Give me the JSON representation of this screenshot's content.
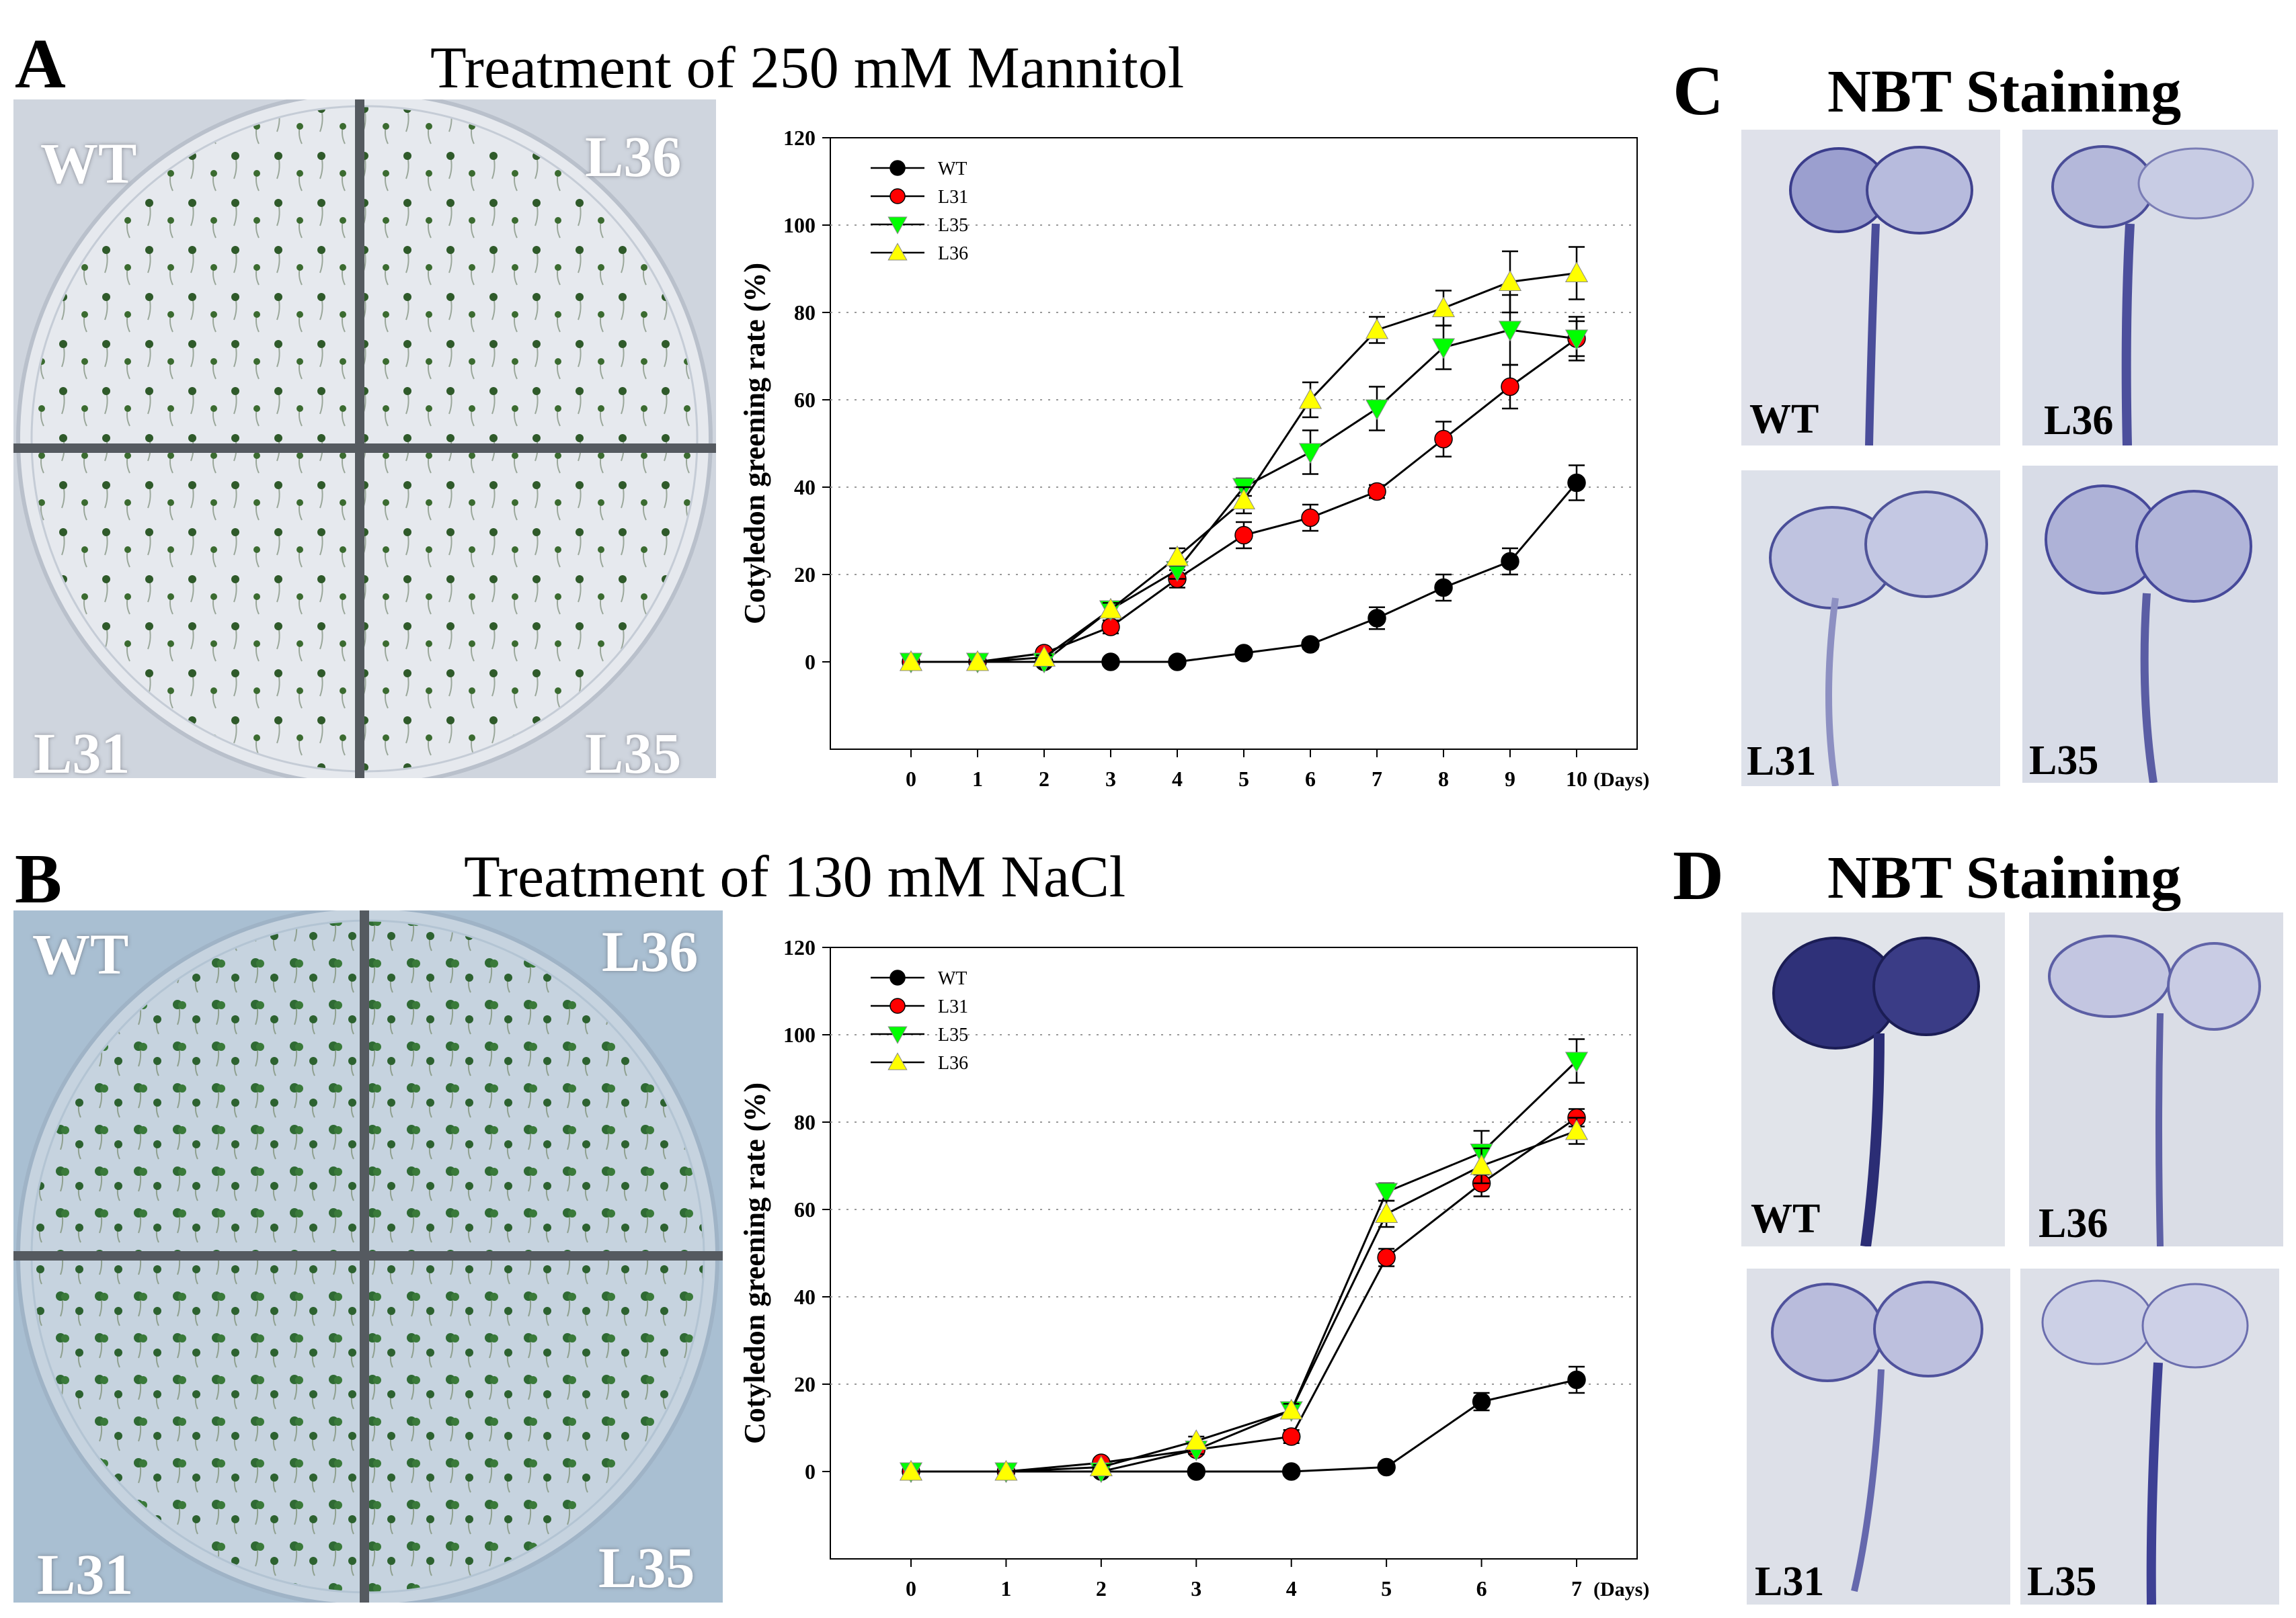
{
  "figure": {
    "panel_letters": {
      "a": "A",
      "b": "B",
      "c": "C",
      "d": "D"
    },
    "titles": {
      "a": "Treatment of 250 mM Mannitol",
      "b": "Treatment of 130 mM NaCl",
      "c": "NBT Staining",
      "d": "NBT Staining"
    },
    "plate_labels": {
      "a": {
        "tl": "WT",
        "tr": "L36",
        "bl": "L31",
        "br": "L35"
      },
      "b": {
        "tl": "WT",
        "tr": "L36",
        "bl": "L31",
        "br": "L35"
      }
    },
    "stain_labels": {
      "c": {
        "tl": "WT",
        "tr": "L36",
        "bl": "L31",
        "br": "L35"
      },
      "d": {
        "tl": "WT",
        "tr": "L36",
        "bl": "L31",
        "br": "L35"
      }
    },
    "colors": {
      "wt": "#000000",
      "l31": "#ff0000",
      "l35": "#00ff00",
      "l36": "#ffff00"
    }
  },
  "chart_data": [
    {
      "type": "line",
      "title": "",
      "xlabel": "",
      "ylabel": "Cotyledon greening rate (%)",
      "x_unit": "(Days)",
      "x": [
        0,
        1,
        2,
        3,
        4,
        5,
        6,
        7,
        8,
        9,
        10
      ],
      "ylim": [
        -20,
        120
      ],
      "yticks": [
        0,
        20,
        40,
        60,
        80,
        100,
        120
      ],
      "grid": "horizontal dotted",
      "legend": "top-left",
      "series": [
        {
          "name": "WT",
          "marker": "circle",
          "color": "#000000",
          "values": [
            0,
            0,
            0,
            0,
            0,
            2,
            4,
            10,
            17,
            23,
            41
          ],
          "errors": [
            0,
            0,
            0,
            0,
            0,
            0.5,
            1,
            2.5,
            3,
            3,
            4
          ]
        },
        {
          "name": "L31",
          "marker": "circle",
          "color": "#ff0000",
          "values": [
            0,
            0,
            2,
            8,
            19,
            29,
            33,
            39,
            51,
            63,
            74
          ],
          "errors": [
            0,
            0,
            0.5,
            1.5,
            2,
            3,
            3,
            1.5,
            4,
            5,
            4
          ]
        },
        {
          "name": "L35",
          "marker": "triangle-down",
          "color": "#00ff00",
          "values": [
            0,
            0,
            0,
            12,
            21,
            40,
            48,
            58,
            72,
            76,
            74
          ],
          "errors": [
            0,
            0,
            0,
            1.5,
            2,
            2,
            5,
            5,
            5,
            8,
            5
          ]
        },
        {
          "name": "L36",
          "marker": "triangle-up",
          "color": "#ffff00",
          "values": [
            0,
            0,
            1,
            12,
            24,
            37,
            60,
            76,
            81,
            87,
            89
          ],
          "errors": [
            0,
            0,
            0.5,
            1.5,
            2,
            3,
            4,
            3,
            4,
            7,
            6
          ]
        }
      ]
    },
    {
      "type": "line",
      "title": "",
      "xlabel": "",
      "ylabel": "Cotyledon greening rate (%)",
      "x_unit": "(Days)",
      "x": [
        0,
        1,
        2,
        3,
        4,
        5,
        6,
        7
      ],
      "ylim": [
        -20,
        120
      ],
      "yticks": [
        0,
        20,
        40,
        60,
        80,
        100,
        120
      ],
      "grid": "horizontal dotted",
      "legend": "top-left",
      "series": [
        {
          "name": "WT",
          "marker": "circle",
          "color": "#000000",
          "values": [
            0,
            0,
            0,
            0,
            0,
            1,
            16,
            21
          ],
          "errors": [
            0,
            0,
            0,
            0,
            0,
            0.5,
            2,
            3
          ]
        },
        {
          "name": "L31",
          "marker": "circle",
          "color": "#ff0000",
          "values": [
            0,
            0,
            2,
            5,
            8,
            49,
            66,
            81
          ],
          "errors": [
            0,
            0,
            0.5,
            1,
            1.5,
            2,
            3,
            2
          ]
        },
        {
          "name": "L35",
          "marker": "triangle-down",
          "color": "#00ff00",
          "values": [
            0,
            0,
            0,
            5,
            14,
            64,
            73,
            94
          ],
          "errors": [
            0,
            0,
            0,
            1,
            1.5,
            2,
            5,
            5
          ]
        },
        {
          "name": "L36",
          "marker": "triangle-up",
          "color": "#ffff00",
          "values": [
            0,
            0,
            1,
            7,
            14,
            59,
            70,
            78
          ],
          "errors": [
            0,
            0,
            0.5,
            1,
            1.5,
            3,
            4,
            3
          ]
        }
      ]
    }
  ]
}
